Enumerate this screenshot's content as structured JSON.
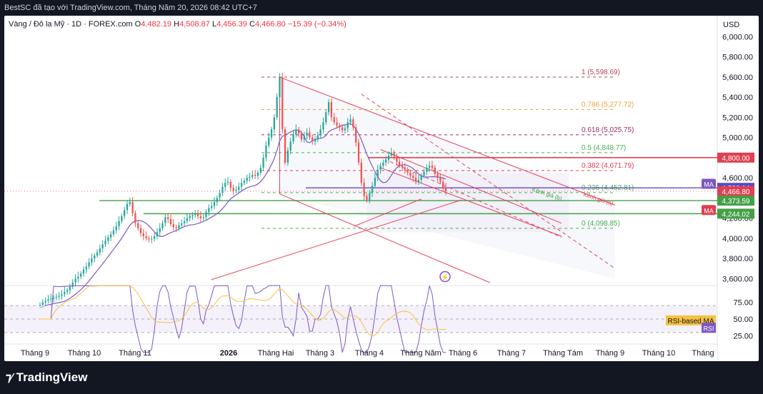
{
  "header": {
    "attribution": "BestSC đã tạo với TradingView.com, Tháng Năm 20, 2026 08:42 UTC+7"
  },
  "legend": {
    "symbol": "Vàng / Đô la Mỹ · 1D · FOREX.com",
    "o_label": "O",
    "o_value": "4,482.19",
    "h_label": "H",
    "h_value": "4,508.87",
    "l_label": "L",
    "l_value": "4,456.39",
    "c_label": "C",
    "c_value": "4,466.80",
    "change": "−15.39 (−0.34%)"
  },
  "price_axis": {
    "currency": "USD"
  },
  "footer": {
    "brand": "TradingView",
    "logo_icon": "tradingview-logo-icon"
  },
  "colors": {
    "fib_1": "#b2455d",
    "fib_786": "#e8a33d",
    "fib_618": "#9c2c6e",
    "fib_5": "#4caf50",
    "fib_382": "#e04050",
    "fib_236": "#4caf50",
    "fib_0": "#4caf50",
    "channel": "#e4425a",
    "support": "#43a047",
    "ma": "#7e57c2",
    "rsi": "#7e57c2",
    "rsi_ma": "#f5c242",
    "up": "#26a69a",
    "down": "#ef5350"
  },
  "chart_data": {
    "type": "candlestick",
    "price_ticks": [
      "6,000.00",
      "5,800.00",
      "5,600.00",
      "5,400.00",
      "5,200.00",
      "5,000.00",
      "4,800.00",
      "4,600.00",
      "4,400.00",
      "4,200.00",
      "4,000.00",
      "3,800.00",
      "3,600.00"
    ],
    "ylim": [
      3560,
      6080
    ],
    "x_labels": [
      "Tháng 9",
      "Tháng 10",
      "Tháng 11",
      "2026",
      "Tháng Hai",
      "Tháng 3",
      "Tháng 4",
      "Tháng Năm",
      "Tháng 6",
      "Tháng 7",
      "Tháng Tám",
      "Tháng 9",
      "Tháng 10",
      "Tháng"
    ],
    "fib_levels": [
      {
        "label": "1 (5,598.69)",
        "price": 5598.69,
        "color": "#b2455d"
      },
      {
        "label": "0.786 (5,277.72)",
        "price": 5277.72,
        "color": "#e8a33d"
      },
      {
        "label": "0.618 (5,025.75)",
        "price": 5025.75,
        "color": "#9c2c6e"
      },
      {
        "label": "0.5 (4,848.77)",
        "price": 4848.77,
        "color": "#4caf50"
      },
      {
        "label": "0.382 (4,671.79)",
        "price": 4671.79,
        "color": "#e04050"
      },
      {
        "label": "0.236 (4,452.81)",
        "price": 4452.81,
        "color": "#4caf50"
      },
      {
        "label": "0 (4,098.85)",
        "price": 4098.85,
        "color": "#4caf50"
      }
    ],
    "horizontal_lines": [
      {
        "price": 4800.0,
        "color": "#e04050"
      },
      {
        "price": 4500.14,
        "color": "#5b4bc4"
      },
      {
        "price": 4373.59,
        "color": "#43a047"
      },
      {
        "price": 4244.02,
        "color": "#43a047"
      }
    ],
    "price_badges": [
      {
        "label": "MA",
        "price": 4540,
        "color": "#7e57c2"
      },
      {
        "label": "4,800.00",
        "price": 4800,
        "color": "#e04050"
      },
      {
        "label": "4,500.14",
        "price": 4500.14,
        "color": "#5b4bc4"
      },
      {
        "label": "4,466.80",
        "price": 4466.8,
        "color": "#e04050"
      },
      {
        "label": "4,373.59",
        "price": 4373.59,
        "color": "#43a047"
      },
      {
        "label": "MA",
        "price": 4280,
        "color": "#e04050"
      },
      {
        "label": "4,244.02",
        "price": 4244.02,
        "color": "#43a047"
      }
    ],
    "channel_labels": [
      "Kênh giá (b)",
      "Kênh giá (a)"
    ],
    "closes": [
      3340,
      3365,
      3380,
      3395,
      3400,
      3410,
      3420,
      3430,
      3445,
      3470,
      3485,
      3520,
      3560,
      3600,
      3620,
      3650,
      3690,
      3720,
      3760,
      3800,
      3830,
      3860,
      3900,
      3940,
      3975,
      4010,
      4040,
      4080,
      4120,
      4170,
      4220,
      4280,
      4340,
      4360,
      4250,
      4150,
      4100,
      4050,
      4020,
      4000,
      3990,
      3995,
      4020,
      4060,
      4100,
      4150,
      4210,
      4190,
      4140,
      4110,
      4100,
      4130,
      4150,
      4170,
      4200,
      4220,
      4230,
      4240,
      4220,
      4200,
      4210,
      4260,
      4300,
      4320,
      4360,
      4400,
      4450,
      4510,
      4550,
      4560,
      4500,
      4470,
      4480,
      4510,
      4550,
      4570,
      4600,
      4610,
      4630,
      4620,
      4650,
      4700,
      4800,
      4920,
      5000,
      5080,
      5200,
      5400,
      5595,
      5080,
      4750,
      4870,
      4960,
      5030,
      5080,
      5040,
      4980,
      5020,
      5050,
      5000,
      4960,
      4980,
      5020,
      5080,
      5150,
      5250,
      5350,
      5200,
      5150,
      5120,
      5100,
      5070,
      5090,
      5150,
      5180,
      5100,
      4950,
      4750,
      4550,
      4420,
      4380,
      4450,
      4520,
      4600,
      4680,
      4720,
      4750,
      4780,
      4820,
      4850,
      4810,
      4760,
      4720,
      4700,
      4680,
      4650,
      4620,
      4600,
      4560,
      4580,
      4620,
      4660,
      4700,
      4720,
      4700,
      4640,
      4600,
      4560,
      4500,
      4467
    ],
    "rsi": {
      "labels": [
        "RSI-based MA",
        "RSI"
      ],
      "ticks": [
        "75.00",
        "50.00",
        "25.00"
      ],
      "ylim": [
        15,
        85
      ]
    },
    "events_icon": "lightning-icon"
  }
}
